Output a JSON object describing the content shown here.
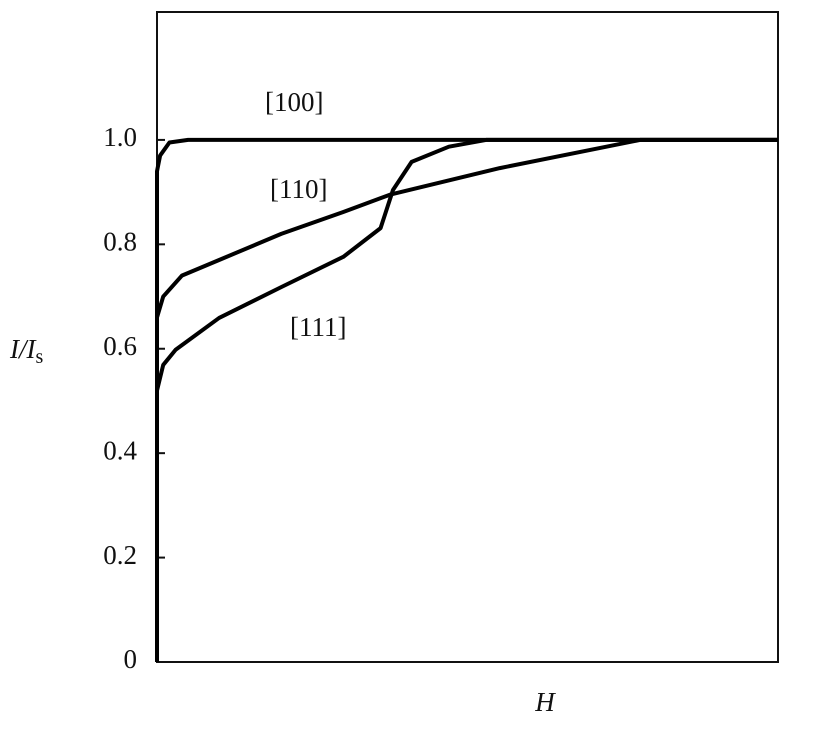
{
  "chart_data": {
    "type": "line",
    "xlabel": "H",
    "ylabel": {
      "text": "I/I",
      "subscript": "s"
    },
    "xlim": [
      0,
      1
    ],
    "ylim": [
      0,
      1.245
    ],
    "yticks": [
      0,
      0.2,
      0.4,
      0.6,
      0.8,
      {
        "value": 1,
        "label": "1.0"
      }
    ],
    "grid": false,
    "series": [
      {
        "name": "[100]",
        "color": "#000000",
        "x": [
          0,
          0,
          0.005,
          0.02,
          0.05,
          1
        ],
        "values": [
          0,
          0.94,
          0.97,
          0.995,
          1,
          1
        ]
      },
      {
        "name": "[110]",
        "color": "#000000",
        "x": [
          0,
          0,
          0.01,
          0.04,
          0.1,
          0.2,
          0.3,
          0.375,
          0.552,
          0.778,
          1
        ],
        "values": [
          0,
          0.66,
          0.7,
          0.74,
          0.77,
          0.82,
          0.862,
          0.895,
          0.946,
          1,
          1
        ]
      },
      {
        "name": "[111]",
        "color": "#000000",
        "x": [
          0,
          0,
          0.01,
          0.03,
          0.1,
          0.2,
          0.3,
          0.36,
          0.38,
          0.41,
          0.47,
          0.53,
          1
        ],
        "values": [
          0,
          0.52,
          0.569,
          0.598,
          0.659,
          0.718,
          0.776,
          0.831,
          0.904,
          0.958,
          0.987,
          1,
          1
        ]
      }
    ]
  }
}
